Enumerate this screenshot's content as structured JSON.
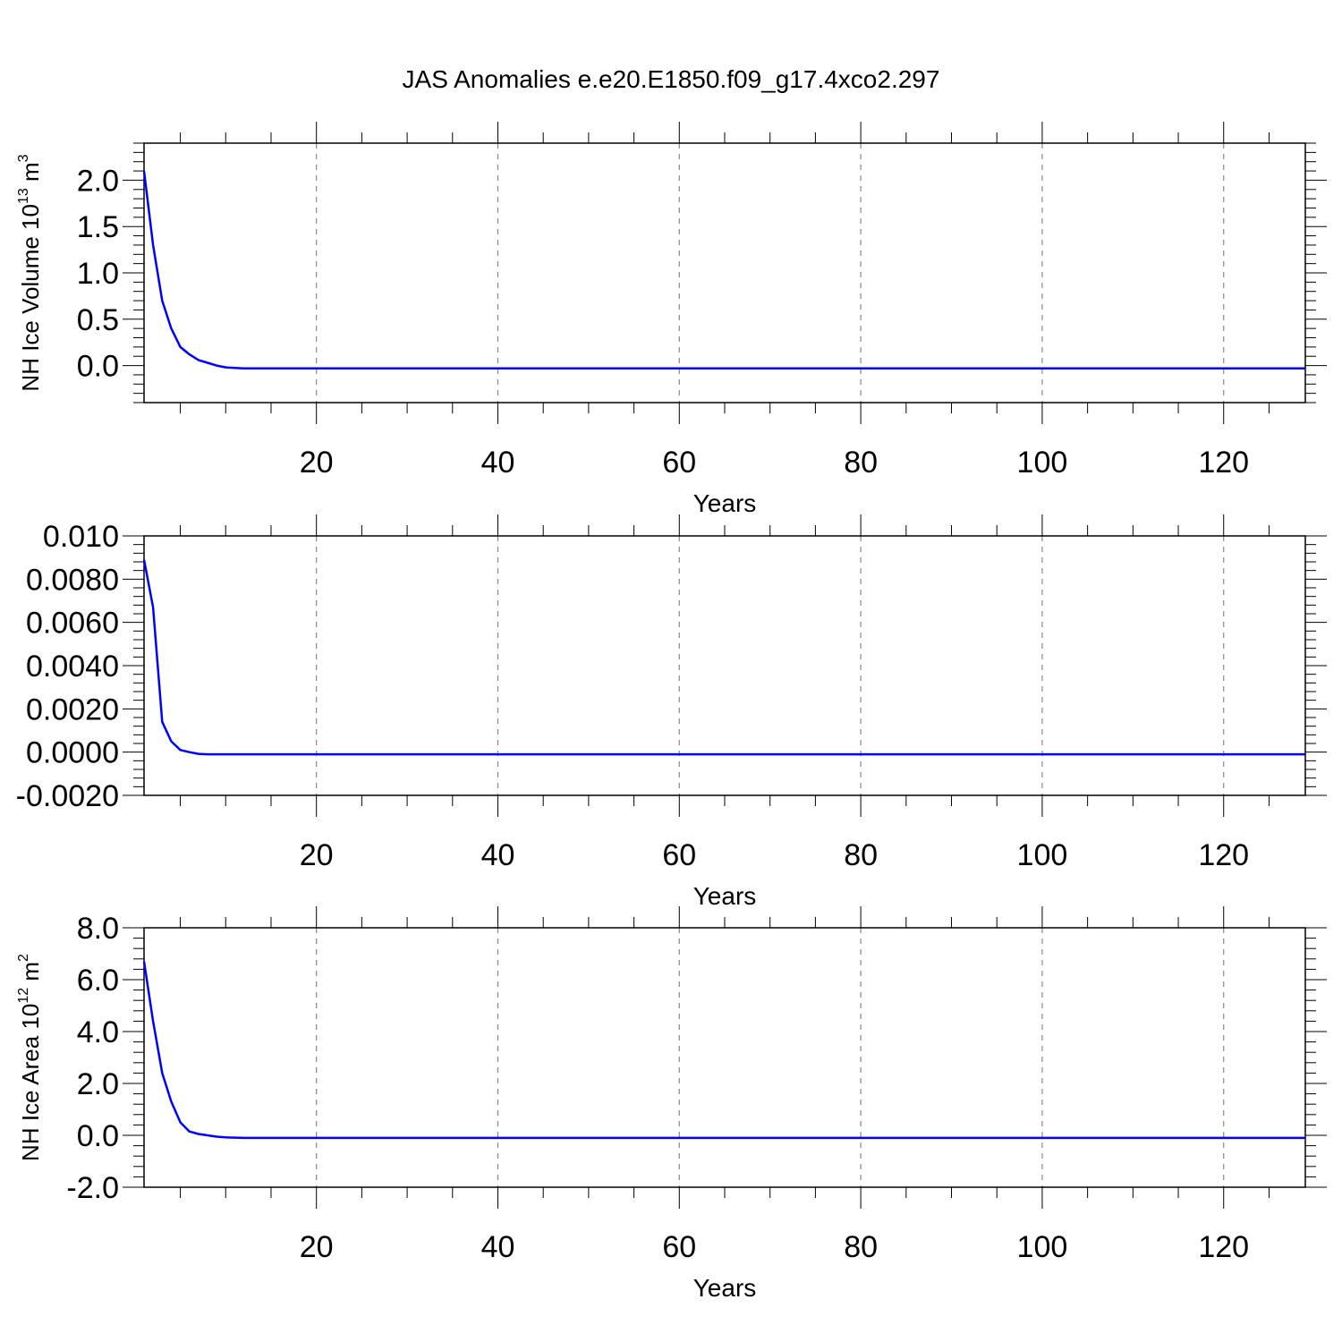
{
  "figure": {
    "title": "JAS Anomalies e.e20.E1850.f09_g17.4xco2.297"
  },
  "chart_data": [
    {
      "type": "line",
      "title": "",
      "xlabel": "Years",
      "ylabel": "NH Ice Volume 10¹³ m³",
      "ylabel_parts": {
        "main": "NH Ice Volume 10",
        "exp1": "13",
        "unit": " m",
        "exp2": "3"
      },
      "xlim": [
        1,
        129
      ],
      "ylim": [
        -0.4,
        2.4
      ],
      "x_ticks": [
        20,
        40,
        60,
        80,
        100,
        120
      ],
      "x_tick_labels": [
        "20",
        "40",
        "60",
        "80",
        "100",
        "120"
      ],
      "y_ticks": [
        0.0,
        0.5,
        1.0,
        1.5,
        2.0
      ],
      "y_tick_labels": [
        "0.0",
        "0.5",
        "1.0",
        "1.5",
        "2.0"
      ],
      "grid": "vertical dashed",
      "color": "#0000ff",
      "x": [
        1,
        2,
        3,
        4,
        5,
        6,
        7,
        8,
        9,
        10,
        11,
        12,
        13,
        15,
        20,
        30,
        40,
        50,
        60,
        70,
        80,
        90,
        100,
        110,
        120,
        129
      ],
      "y": [
        2.1,
        1.3,
        0.7,
        0.4,
        0.2,
        0.12,
        0.06,
        0.03,
        0.0,
        -0.02,
        -0.025,
        -0.03,
        -0.03,
        -0.03,
        -0.03,
        -0.03,
        -0.03,
        -0.03,
        -0.03,
        -0.03,
        -0.03,
        -0.03,
        -0.03,
        -0.03,
        -0.03,
        -0.03
      ]
    },
    {
      "type": "line",
      "title": "",
      "xlabel": "Years",
      "ylabel": "",
      "xlim": [
        1,
        129
      ],
      "ylim": [
        -0.002,
        0.01
      ],
      "x_ticks": [
        20,
        40,
        60,
        80,
        100,
        120
      ],
      "x_tick_labels": [
        "20",
        "40",
        "60",
        "80",
        "100",
        "120"
      ],
      "y_ticks": [
        -0.002,
        0.0,
        0.002,
        0.004,
        0.006,
        0.008,
        0.01
      ],
      "y_tick_labels": [
        "-0.0020",
        "0.0000",
        "0.0020",
        "0.0040",
        "0.0060",
        "0.0080",
        "0.010"
      ],
      "grid": "vertical dashed",
      "color": "#0000ff",
      "x": [
        1,
        2,
        3,
        4,
        5,
        6,
        7,
        8,
        10,
        15,
        20,
        30,
        40,
        50,
        60,
        70,
        80,
        90,
        100,
        110,
        120,
        129
      ],
      "y": [
        0.0089,
        0.0067,
        0.0014,
        0.0005,
        0.0001,
        0.0,
        -8e-05,
        -0.0001,
        -0.0001,
        -0.0001,
        -0.0001,
        -0.0001,
        -0.0001,
        -0.0001,
        -0.0001,
        -0.0001,
        -0.0001,
        -0.0001,
        -0.0001,
        -0.0001,
        -0.0001,
        -0.0001
      ]
    },
    {
      "type": "line",
      "title": "",
      "xlabel": "Years",
      "ylabel": "NH Ice Area 10¹² m²",
      "ylabel_parts": {
        "main": "NH Ice Area 10",
        "exp1": "12",
        "unit": " m",
        "exp2": "2"
      },
      "xlim": [
        1,
        129
      ],
      "ylim": [
        -2.0,
        8.0
      ],
      "x_ticks": [
        20,
        40,
        60,
        80,
        100,
        120
      ],
      "x_tick_labels": [
        "20",
        "40",
        "60",
        "80",
        "100",
        "120"
      ],
      "y_ticks": [
        -2.0,
        0.0,
        2.0,
        4.0,
        6.0,
        8.0
      ],
      "y_tick_labels": [
        "-2.0",
        "0.0",
        "2.0",
        "4.0",
        "6.0",
        "8.0"
      ],
      "grid": "vertical dashed",
      "color": "#0000ff",
      "x": [
        1,
        2,
        3,
        4,
        5,
        6,
        7,
        8,
        9,
        10,
        12,
        15,
        20,
        30,
        40,
        50,
        60,
        70,
        80,
        90,
        100,
        110,
        120,
        129
      ],
      "y": [
        6.7,
        4.4,
        2.4,
        1.3,
        0.5,
        0.15,
        0.05,
        0.0,
        -0.05,
        -0.08,
        -0.1,
        -0.1,
        -0.1,
        -0.1,
        -0.1,
        -0.1,
        -0.1,
        -0.1,
        -0.1,
        -0.1,
        -0.1,
        -0.1,
        -0.1,
        -0.1
      ]
    }
  ]
}
